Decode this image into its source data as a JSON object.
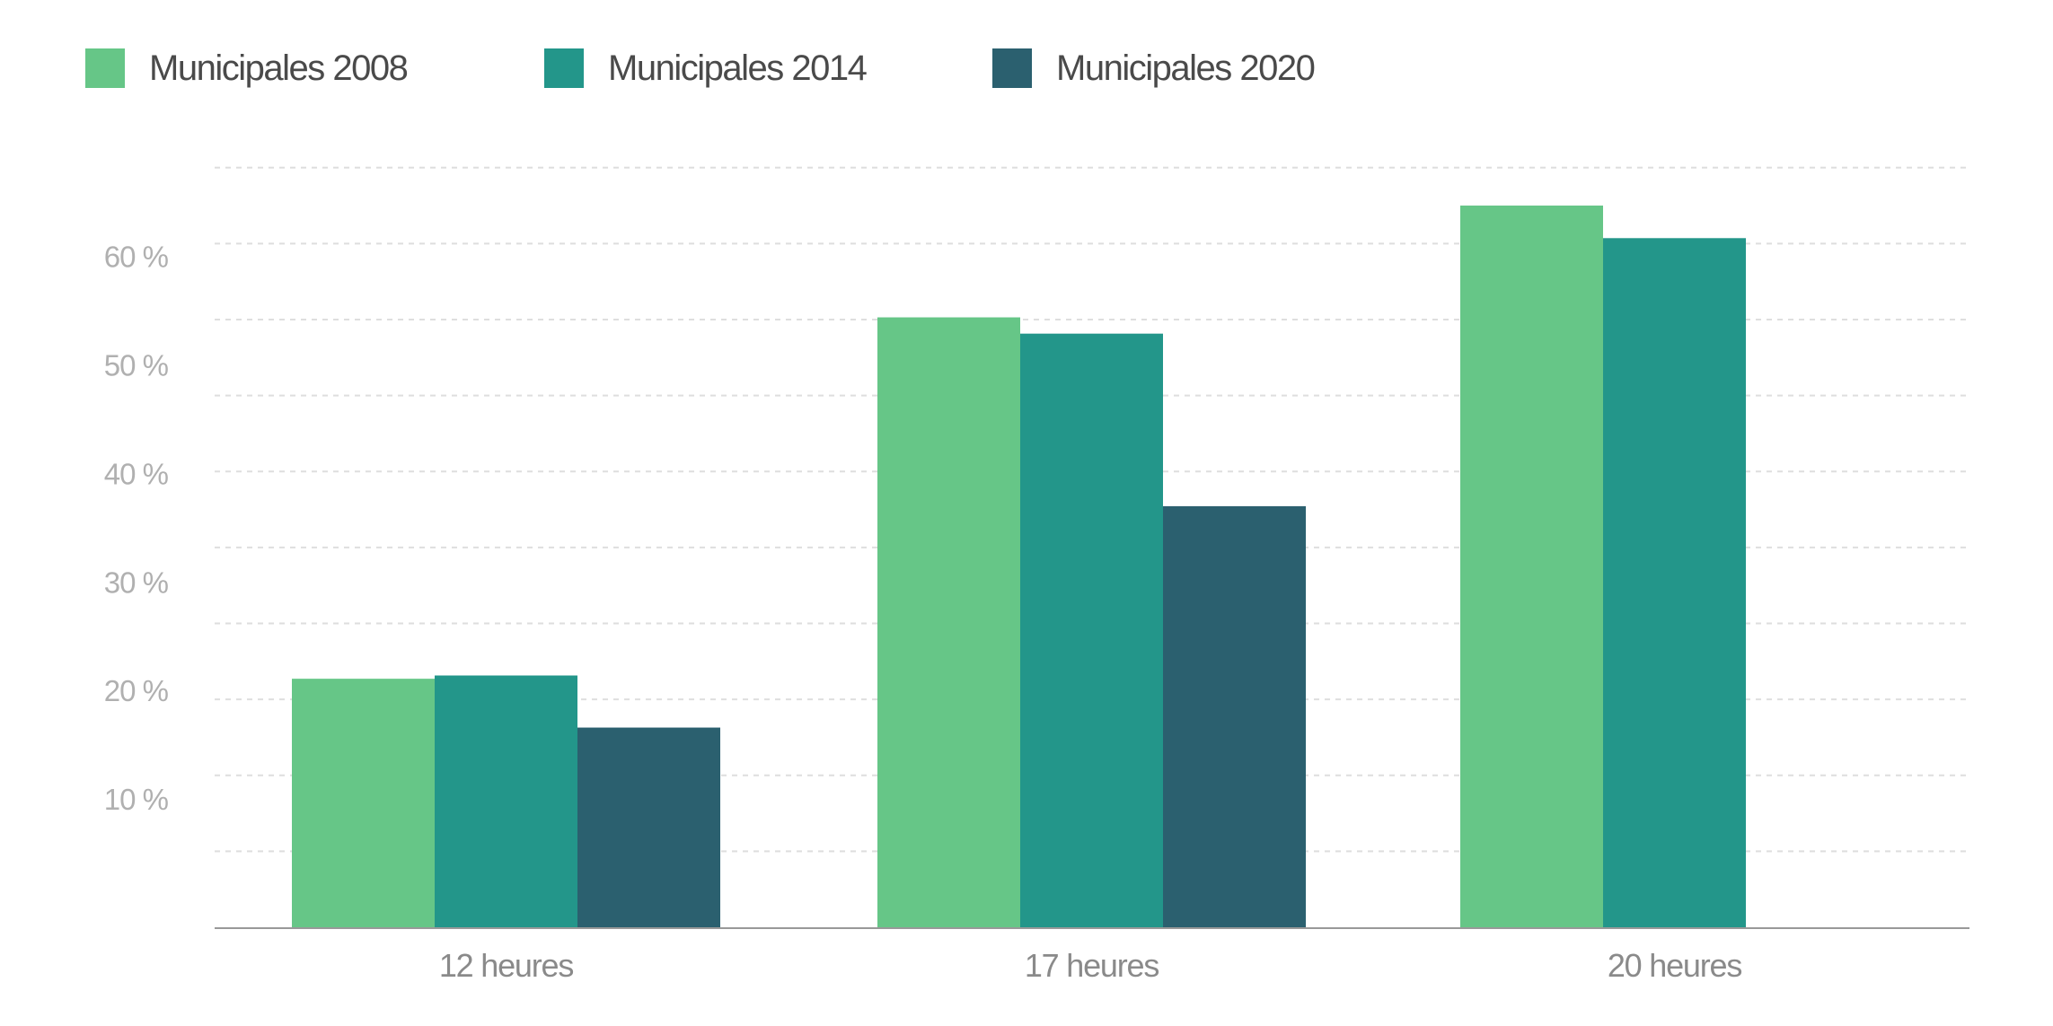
{
  "chart_data": {
    "type": "bar",
    "title": "",
    "xlabel": "",
    "ylabel": "",
    "categories": [
      "12 heures",
      "17 heures",
      "20 heures"
    ],
    "series": [
      {
        "name": "Municipales 2008",
        "color": "#66c687",
        "values": [
          22.9,
          56.2,
          66.5
        ]
      },
      {
        "name": "Municipales 2014",
        "color": "#23968a",
        "values": [
          23.2,
          54.7,
          63.5
        ]
      },
      {
        "name": "Municipales 2020",
        "color": "#2b606f",
        "values": [
          18.4,
          38.8,
          null
        ]
      }
    ],
    "ylim": [
      0,
      70
    ],
    "gridline_step": 7,
    "yticks": [
      10,
      20,
      30,
      40,
      50,
      60
    ],
    "ytick_labels": [
      "10 %",
      "20 %",
      "30 %",
      "40 %",
      "50 %",
      "60 %"
    ],
    "grid": true,
    "legend": "top-left"
  }
}
